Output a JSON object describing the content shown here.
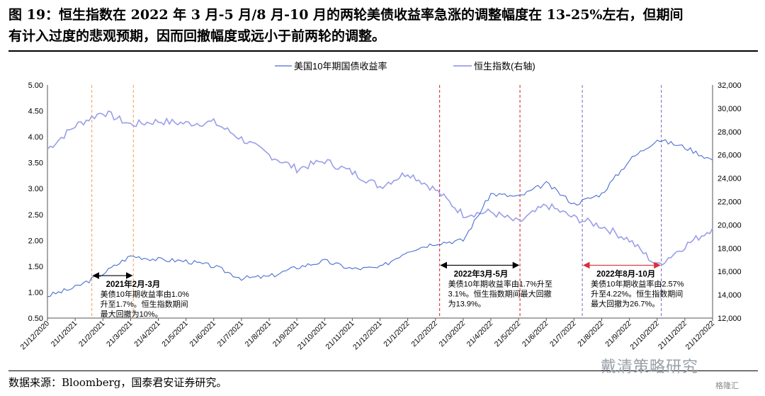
{
  "title_lines": [
    "图 19：恒生指数在 2022 年 3 月-5 月/8 月-10 月的两轮美债收益率急涨的调整幅度在 13-25%左右，但期间",
    "有计入过度的悲观预期，因而回撤幅度或远小于前两轮的调整。"
  ],
  "source": "数据来源：Bloomberg，国泰君安证券研究。",
  "watermark": "戴清策略研究",
  "brand": "格隆汇",
  "chart_data": {
    "type": "line",
    "legend": [
      "美国10年期国债收益率",
      "恒生指数(右轴)"
    ],
    "legend_position": "top-center",
    "colors": {
      "yield": "#4a6fd1",
      "hsi": "#9a9ee8",
      "orange": "#f5a65b",
      "red": "#d9303a",
      "purple": "#8a6dc8"
    },
    "y_left": {
      "min": 0.5,
      "max": 5.0,
      "ticks": [
        "5.00",
        "4.50",
        "4.00",
        "3.50",
        "3.00",
        "2.50",
        "2.00",
        "1.50",
        "1.00",
        "0.50"
      ]
    },
    "y_right": {
      "min": 12000,
      "max": 32000,
      "ticks": [
        "32,000",
        "30,000",
        "28,000",
        "26,000",
        "24,000",
        "22,000",
        "20,000",
        "18,000",
        "16,000",
        "14,000",
        "12,000"
      ]
    },
    "x_ticks": [
      "21/12/2020",
      "21/1/2021",
      "21/2/2021",
      "21/3/2021",
      "21/4/2021",
      "21/5/2021",
      "21/6/2021",
      "21/7/2021",
      "21/8/2021",
      "21/9/2021",
      "21/10/2021",
      "21/11/2021",
      "21/12/2021",
      "21/1/2022",
      "21/2/2022",
      "21/3/2022",
      "21/4/2022",
      "21/5/2022",
      "21/6/2022",
      "21/7/2022",
      "21/8/2022",
      "21/9/2022",
      "21/10/2022",
      "21/11/2022",
      "21/12/2022"
    ],
    "series": [
      {
        "name": "美国10年期国债收益率",
        "axis": "left",
        "values": [
          0.93,
          1.09,
          1.36,
          1.7,
          1.63,
          1.6,
          1.5,
          1.27,
          1.3,
          1.48,
          1.6,
          1.45,
          1.47,
          1.8,
          1.95,
          2.0,
          2.9,
          2.84,
          3.1,
          2.7,
          2.9,
          3.55,
          3.95,
          3.8,
          3.55
        ]
      },
      {
        "name": "恒生指数(右轴)",
        "axis": "right",
        "values": [
          26500,
          28500,
          29700,
          28600,
          28900,
          28700,
          28800,
          27400,
          26000,
          24800,
          25500,
          24500,
          23300,
          24500,
          23000,
          20900,
          21100,
          20200,
          21700,
          20600,
          19900,
          18700,
          16500,
          18200,
          19700
        ]
      }
    ],
    "vlines": [
      {
        "x": 1.6,
        "color": "orange"
      },
      {
        "x": 3.1,
        "color": "orange"
      },
      {
        "x": 14.15,
        "color": "red"
      },
      {
        "x": 17.05,
        "color": "red"
      },
      {
        "x": 19.3,
        "color": "purple"
      },
      {
        "x": 22.15,
        "color": "purple"
      }
    ],
    "annotations": [
      {
        "x1": 1.6,
        "x2": 3.1,
        "y": 1.32,
        "arrow_color": "black",
        "lines": [
          "2021年2月-3月",
          "美债10年期收益率由1.0%",
          "升至1.7%。恒生指数期间",
          "最大回撤为10%。"
        ]
      },
      {
        "x1": 14.15,
        "x2": 17.05,
        "y": 1.52,
        "arrow_color": "black",
        "lines": [
          "2022年3月-5月",
          "美债10年期收益率由1.7%升至",
          "3.1%。恒生指数期间最大回撤",
          "为13.9%。"
        ]
      },
      {
        "x1": 19.3,
        "x2": 22.15,
        "y": 1.52,
        "arrow_color": "red",
        "lines": [
          "2022年8月-10月",
          "美债10年期收益率由2.57%",
          "升至4.22%。恒生指数期间",
          "最大回撤为26.7%。"
        ]
      }
    ]
  }
}
